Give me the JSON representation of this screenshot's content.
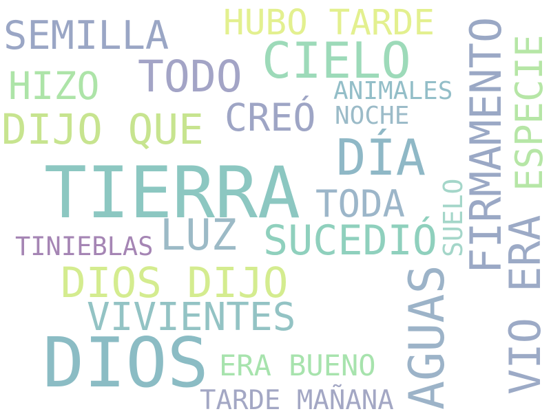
{
  "words": [
    {
      "text": "TIERRA",
      "color": "#8cc7c1"
    },
    {
      "text": "DIOS",
      "color": "#8bbcc4"
    },
    {
      "text": "DÍA",
      "color": "#8fb8c6"
    },
    {
      "text": "CIELO",
      "color": "#9ddab9"
    },
    {
      "text": "DIJO QUE",
      "color": "#c7e48f"
    },
    {
      "text": "DIOS DIJO",
      "color": "#d4ec8f"
    },
    {
      "text": "TODO",
      "color": "#a3a4c6"
    },
    {
      "text": "SEMILLA",
      "color": "#9aa6c5"
    },
    {
      "text": "HUBO TARDE",
      "color": "#e3f08f"
    },
    {
      "text": "HIZO",
      "color": "#ade4a8"
    },
    {
      "text": "CREÓ",
      "color": "#9ea5c5"
    },
    {
      "text": "ANIMALES",
      "color": "#93bec8"
    },
    {
      "text": "NOCHE",
      "color": "#9bbbc8"
    },
    {
      "text": "TODA",
      "color": "#9cb6c9"
    },
    {
      "text": "LUZ",
      "color": "#9cbac6"
    },
    {
      "text": "SUCEDIÓ",
      "color": "#8fd0bd"
    },
    {
      "text": "TINIEBLAS",
      "color": "#a585b4"
    },
    {
      "text": "VIVIENTES",
      "color": "#93c3c4"
    },
    {
      "text": "ERA BUENO",
      "color": "#a7e3ad"
    },
    {
      "text": "TARDE MAÑANA",
      "color": "#a3a7c4"
    },
    {
      "text": "AGUAS",
      "color": "#9cb3c8"
    },
    {
      "text": "FIRMAMENTO",
      "color": "#9aa8c5"
    },
    {
      "text": "ESPECIE",
      "color": "#b6e6a6"
    },
    {
      "text": "VIO ERA",
      "color": "#9caac6"
    },
    {
      "text": "SUELO",
      "color": "#a4d6c9"
    }
  ]
}
